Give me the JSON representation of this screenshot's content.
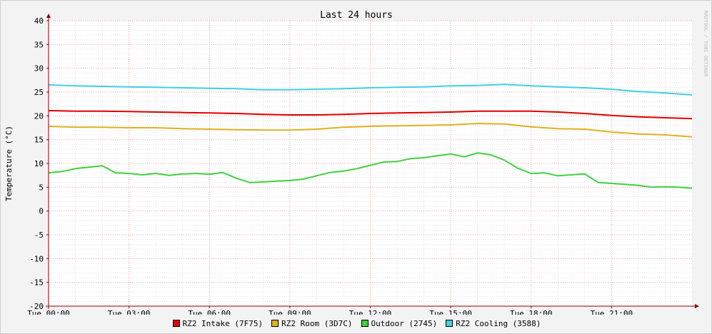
{
  "chart_data": {
    "type": "line",
    "title": "Last 24 hours",
    "xlabel": "",
    "ylabel": "Temperature (°C)",
    "watermark": "RRDTOOL / TOBI OETIKER",
    "x_ticks": [
      "Tue 00:00",
      "Tue 03:00",
      "Tue 06:00",
      "Tue 09:00",
      "Tue 12:00",
      "Tue 15:00",
      "Tue 18:00",
      "Tue 21:00"
    ],
    "y_ticks": [
      40,
      35,
      30,
      25,
      20,
      15,
      10,
      5,
      0,
      -5,
      -10,
      -15,
      -20
    ],
    "ylim": [
      -20,
      40
    ],
    "xlim_hours": [
      0,
      24
    ],
    "grid": true,
    "legend_position": "bottom",
    "series": [
      {
        "name": "RZ2 Intake (7F75)",
        "color": "#e00000",
        "x_hours": [
          0,
          1,
          2,
          3,
          4,
          5,
          6,
          7,
          8,
          9,
          10,
          11,
          12,
          13,
          14,
          15,
          16,
          17,
          18,
          19,
          20,
          21,
          22,
          23,
          24
        ],
        "values": [
          21.1,
          21.0,
          21.0,
          20.9,
          20.8,
          20.7,
          20.6,
          20.5,
          20.3,
          20.2,
          20.2,
          20.3,
          20.5,
          20.6,
          20.7,
          20.8,
          21.0,
          21.0,
          21.0,
          20.8,
          20.5,
          20.1,
          19.8,
          19.6,
          19.4
        ]
      },
      {
        "name": "RZ2 Room (3D7C)",
        "color": "#e0b020",
        "x_hours": [
          0,
          1,
          2,
          3,
          4,
          5,
          6,
          7,
          8,
          9,
          10,
          11,
          12,
          13,
          14,
          15,
          16,
          17,
          18,
          19,
          20,
          21,
          22,
          23,
          24
        ],
        "values": [
          17.8,
          17.6,
          17.6,
          17.5,
          17.5,
          17.3,
          17.2,
          17.1,
          17.0,
          17.0,
          17.2,
          17.6,
          17.8,
          17.9,
          18.0,
          18.1,
          18.4,
          18.3,
          17.7,
          17.3,
          17.2,
          16.6,
          16.2,
          16.0,
          15.6
        ]
      },
      {
        "name": "Outdoor (2745)",
        "color": "#40d040",
        "x_hours": [
          0,
          0.5,
          1,
          1.5,
          2,
          2.5,
          3,
          3.5,
          4,
          4.5,
          5,
          5.5,
          6,
          6.5,
          7,
          7.5,
          8,
          8.5,
          9,
          9.5,
          10,
          10.5,
          11,
          11.5,
          12,
          12.5,
          13,
          13.5,
          14,
          14.5,
          15,
          15.5,
          16,
          16.5,
          17,
          17.5,
          18,
          18.5,
          19,
          19.5,
          20,
          20.5,
          21,
          21.5,
          22,
          22.5,
          23,
          23.5,
          24
        ],
        "values": [
          8.0,
          8.3,
          8.9,
          9.2,
          9.5,
          8.0,
          7.9,
          7.6,
          7.9,
          7.5,
          7.8,
          7.9,
          7.7,
          8.1,
          6.9,
          6.0,
          6.1,
          6.3,
          6.4,
          6.7,
          7.4,
          8.1,
          8.4,
          8.9,
          9.6,
          10.3,
          10.4,
          11.0,
          11.2,
          11.6,
          12.0,
          11.4,
          12.2,
          11.8,
          10.7,
          9.0,
          7.9,
          8.0,
          7.4,
          7.6,
          7.8,
          6.0,
          5.8,
          5.6,
          5.4,
          5.0,
          5.1,
          5.0,
          4.8
        ]
      },
      {
        "name": "RZ2 Cooling (3588)",
        "color": "#40d0e0",
        "x_hours": [
          0,
          1,
          2,
          3,
          4,
          5,
          6,
          7,
          8,
          9,
          10,
          11,
          12,
          13,
          14,
          15,
          16,
          17,
          18,
          19,
          20,
          21,
          22,
          23,
          24
        ],
        "values": [
          26.5,
          26.3,
          26.2,
          26.1,
          26.0,
          25.9,
          25.8,
          25.7,
          25.5,
          25.5,
          25.6,
          25.7,
          25.9,
          26.0,
          26.1,
          26.3,
          26.4,
          26.6,
          26.3,
          26.1,
          25.9,
          25.6,
          25.1,
          24.8,
          24.4
        ]
      }
    ]
  }
}
